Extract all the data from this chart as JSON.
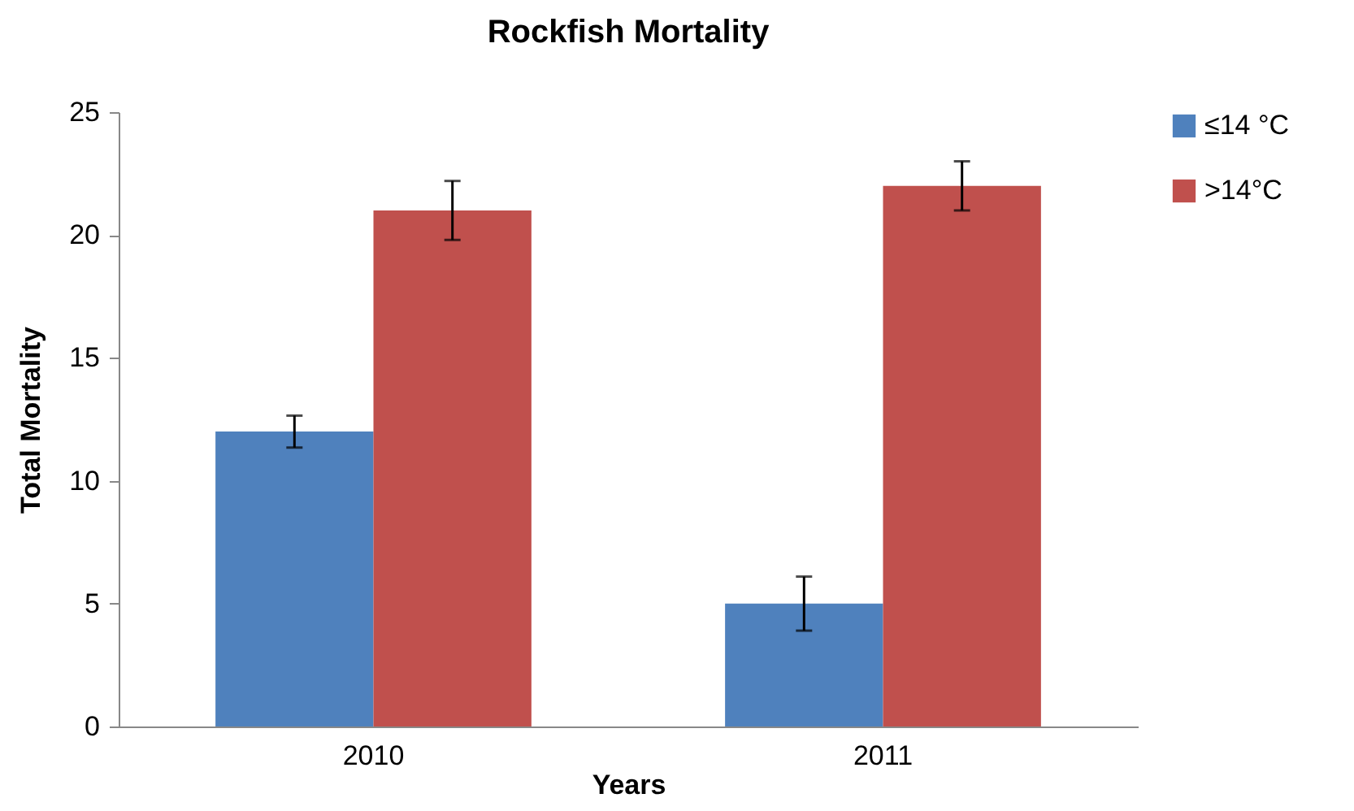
{
  "chart_data": {
    "type": "bar",
    "title": "Rockfish Mortality",
    "xlabel": "Years",
    "ylabel": "Total Mortality",
    "categories": [
      "2010",
      "2011"
    ],
    "series": [
      {
        "name": "≤14 °C",
        "color": "#4f81bd",
        "values": [
          12,
          5
        ],
        "errors": [
          0.65,
          1.1
        ]
      },
      {
        "name": ">14°C",
        "color": "#c0504d",
        "values": [
          21,
          22
        ],
        "errors": [
          1.2,
          1
        ]
      }
    ],
    "ylim": [
      0,
      25
    ],
    "yticks": [
      0,
      5,
      10,
      15,
      20,
      25
    ],
    "grid": false,
    "legend": "right"
  }
}
